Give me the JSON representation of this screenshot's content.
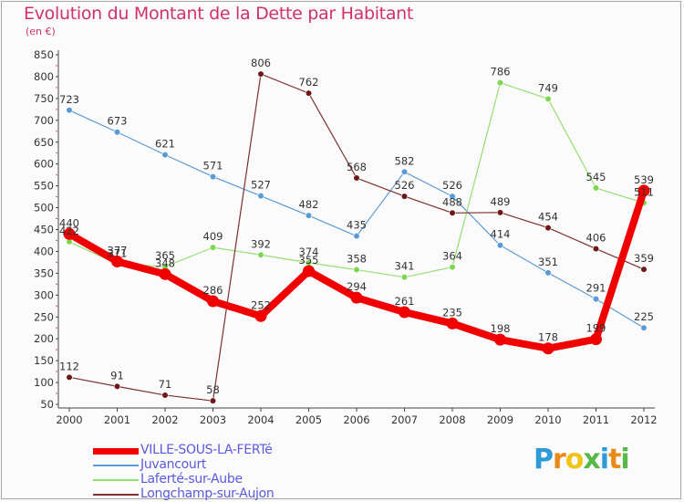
{
  "title": "Evolution du Montant de la Dette par Habitant",
  "subtitle": "(en €)",
  "brand": {
    "letters": [
      "P",
      "r",
      "o",
      "x",
      "i",
      "t",
      "i"
    ],
    "colors": [
      "#2f9ad8",
      "#e98b1b",
      "#f0c419",
      "#57b947",
      "#2f9ad8",
      "#e98b1b",
      "#57b947"
    ]
  },
  "chart_data": {
    "type": "line",
    "title": "Evolution du Montant de la Dette par Habitant",
    "ylabel": "(en €)",
    "xlabel": "",
    "x": [
      "2000",
      "2001",
      "2002",
      "2003",
      "2004",
      "2005",
      "2006",
      "2007",
      "2008",
      "2009",
      "2010",
      "2011",
      "2012"
    ],
    "ylim": [
      50,
      850
    ],
    "yticks": [
      50,
      100,
      150,
      200,
      250,
      300,
      350,
      400,
      450,
      500,
      550,
      600,
      650,
      700,
      750,
      800,
      850
    ],
    "grid": false,
    "legend_position": "bottom",
    "series": [
      {
        "name": "VILLE-SOUS-LA-FERTé",
        "color": "#f00000",
        "dot": "#f00000",
        "thick": true,
        "values": [
          440,
          377,
          348,
          286,
          252,
          355,
          294,
          261,
          235,
          198,
          178,
          199,
          539
        ],
        "labels": [
          "440",
          "377",
          "348",
          "286",
          "252",
          "355",
          "294",
          "261",
          "235",
          "198",
          "178",
          "199",
          "539"
        ]
      },
      {
        "name": "Juvancourt",
        "color": "#5b9bd5",
        "dot": "#5b9bd5",
        "thick": false,
        "values": [
          723,
          673,
          621,
          571,
          527,
          482,
          435,
          582,
          526,
          414,
          351,
          291,
          225
        ],
        "labels": [
          "723",
          "673",
          "621",
          "571",
          "527",
          "482",
          "435",
          "582",
          "526",
          "414",
          "351",
          "291",
          "225"
        ]
      },
      {
        "name": "Laferté-sur-Aube",
        "color": "#94e06f",
        "dot": "#7dd651",
        "thick": false,
        "values": [
          422,
          371,
          365,
          409,
          392,
          374,
          358,
          341,
          364,
          786,
          749,
          545,
          511
        ],
        "labels": [
          "422",
          "371",
          "365",
          "409",
          "392",
          "374",
          "358",
          "341",
          "364",
          "786",
          "749",
          "545",
          "511"
        ]
      },
      {
        "name": "Longchamp-sur-Aujon",
        "color": "#7e2f2f",
        "dot": "#6d1717",
        "thick": false,
        "values": [
          112,
          91,
          71,
          58,
          806,
          762,
          568,
          526,
          488,
          489,
          454,
          406,
          359
        ],
        "labels": [
          "112",
          "91",
          "71",
          "58",
          "806",
          "762",
          "568",
          "526",
          "488",
          "489",
          "454",
          "406",
          "359"
        ]
      }
    ]
  }
}
